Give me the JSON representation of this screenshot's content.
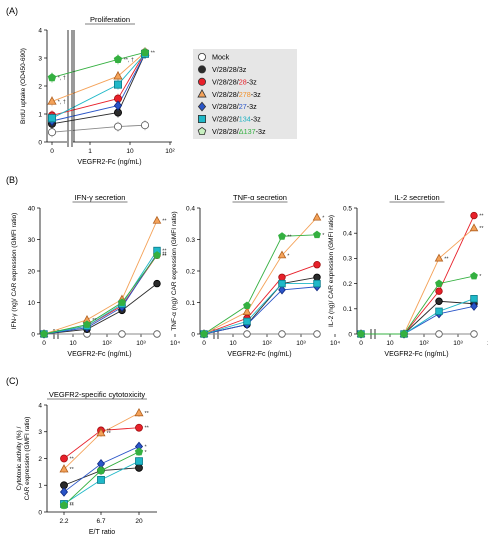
{
  "panel_letters": [
    "(A)",
    "(B)",
    "(C)"
  ],
  "legend": {
    "entries": [
      {
        "parts": [
          {
            "t": "Mock",
            "c": "#000000"
          }
        ],
        "marker": "circle",
        "fill": "#ffffff"
      },
      {
        "parts": [
          {
            "t": "V/28/28/3z",
            "c": "#000000"
          }
        ],
        "marker": "circle",
        "fill": "#2b2b2b"
      },
      {
        "parts": [
          {
            "t": "V/28/28/",
            "c": "#000000"
          },
          {
            "t": "28",
            "c": "#e8202a"
          },
          {
            "t": "-3z",
            "c": "#000000"
          }
        ],
        "marker": "circle",
        "fill": "#e8202a"
      },
      {
        "parts": [
          {
            "t": "V/28/28/",
            "c": "#000000"
          },
          {
            "t": "278",
            "c": "#f0902a"
          },
          {
            "t": "-3z",
            "c": "#000000"
          }
        ],
        "marker": "triangle",
        "fill": "#f4a259"
      },
      {
        "parts": [
          {
            "t": "V/28/28/",
            "c": "#000000"
          },
          {
            "t": "27",
            "c": "#2a55c8"
          },
          {
            "t": "-3z",
            "c": "#000000"
          }
        ],
        "marker": "diamond",
        "fill": "#2a55c8"
      },
      {
        "parts": [
          {
            "t": "V/28/28/",
            "c": "#000000"
          },
          {
            "t": "134",
            "c": "#1ab0c0"
          },
          {
            "t": "-3z",
            "c": "#000000"
          }
        ],
        "marker": "square",
        "fill": "#1fb8c8"
      },
      {
        "parts": [
          {
            "t": "V/28/28/",
            "c": "#000000"
          },
          {
            "t": "Δ137",
            "c": "#34b040"
          },
          {
            "t": "-3z",
            "c": "#000000"
          }
        ],
        "marker": "pentagon",
        "fill": "#c8f0c0"
      }
    ]
  },
  "colors": {
    "mock": "#000000",
    "z3": "#2b2b2b",
    "c28": "#e8202a",
    "c278": "#f4a259",
    "c27": "#2a55c8",
    "c134": "#1fb8c8",
    "d137": "#34b040",
    "legend_bg": "#e6e6e6"
  },
  "chart_data": [
    {
      "type": "line",
      "title": "Proliferation",
      "xlabel": "VEGFR2-Fc (ng/mL)",
      "ylabel": "BrdU uptake (OD450-690)",
      "x_scale": "log with break at 0",
      "x_ticks": [
        "0",
        "1",
        "10",
        "10²"
      ],
      "y_ticks": [
        "0",
        "1",
        "2",
        "3",
        "4"
      ],
      "ylim": [
        0,
        4
      ],
      "x": [
        0,
        2,
        20
      ],
      "series": [
        {
          "key": "mock",
          "marker": "circle",
          "values": [
            0.35,
            0.55,
            0.6
          ],
          "annot": [
            "",
            "",
            ""
          ]
        },
        {
          "key": "z3",
          "marker": "circle",
          "values": [
            0.65,
            1.05,
            3.15
          ],
          "annot": [
            "",
            "",
            ""
          ]
        },
        {
          "key": "c28",
          "marker": "circle",
          "values": [
            0.95,
            1.55,
            3.2
          ],
          "annot": [
            "",
            "",
            "**"
          ]
        },
        {
          "key": "c278",
          "marker": "triangle",
          "values": [
            1.45,
            2.35,
            3.2
          ],
          "annot": [
            "*, †",
            "",
            ""
          ]
        },
        {
          "key": "c27",
          "marker": "diamond",
          "values": [
            0.75,
            1.3,
            3.15
          ],
          "annot": [
            "",
            "",
            ""
          ]
        },
        {
          "key": "c134",
          "marker": "square",
          "values": [
            0.85,
            2.05,
            3.15
          ],
          "annot": [
            "",
            "",
            ""
          ]
        },
        {
          "key": "d137",
          "marker": "pentagon",
          "values": [
            2.3,
            2.95,
            3.2
          ],
          "annot": [
            "*, †",
            "**, †",
            ""
          ]
        }
      ]
    },
    {
      "type": "line",
      "title": "IFN-γ secretion",
      "xlabel": "VEGFR2-Fc (ng/mL)",
      "ylabel": "IFN-γ (ng)/ CAR expression (GMFI ratio)",
      "x_ticks": [
        "0",
        "10",
        "10²",
        "10³",
        "10⁴"
      ],
      "y_ticks": [
        "0",
        "10",
        "20",
        "30",
        "40"
      ],
      "ylim": [
        0,
        40
      ],
      "x": [
        0,
        20,
        200,
        2000
      ],
      "series": [
        {
          "key": "mock",
          "marker": "circle",
          "values": [
            0,
            0,
            0,
            0
          ],
          "annot": [
            "",
            "",
            "",
            ""
          ]
        },
        {
          "key": "z3",
          "marker": "circle",
          "values": [
            0,
            1.5,
            7.5,
            16
          ],
          "annot": [
            "",
            "",
            "",
            ""
          ]
        },
        {
          "key": "c28",
          "marker": "circle",
          "values": [
            0,
            2.5,
            9,
            25
          ],
          "annot": [
            "",
            "",
            "",
            "**"
          ]
        },
        {
          "key": "c278",
          "marker": "triangle",
          "values": [
            0,
            4.5,
            11,
            36
          ],
          "annot": [
            "",
            "**",
            "",
            "**"
          ]
        },
        {
          "key": "c27",
          "marker": "diamond",
          "values": [
            0,
            2,
            8.5,
            25.5
          ],
          "annot": [
            "",
            "",
            "",
            "**"
          ]
        },
        {
          "key": "c134",
          "marker": "square",
          "values": [
            0,
            2.5,
            9.5,
            26.5
          ],
          "annot": [
            "",
            "",
            "",
            "**"
          ]
        },
        {
          "key": "d137",
          "marker": "pentagon",
          "values": [
            0,
            3,
            10,
            25
          ],
          "annot": [
            "",
            "",
            "",
            "**"
          ]
        }
      ]
    },
    {
      "type": "line",
      "title": "TNF-α secretion",
      "xlabel": "VEGFR2-Fc (ng/mL)",
      "ylabel": "TNF-α (ng)/ CAR expression (GMFI ratio)",
      "x_ticks": [
        "0",
        "10",
        "10²",
        "10³",
        "10⁴"
      ],
      "y_ticks": [
        "0",
        "0.1",
        "0.2",
        "0.3",
        "0.4"
      ],
      "ylim": [
        0,
        0.4
      ],
      "x": [
        0,
        20,
        200,
        2000
      ],
      "series": [
        {
          "key": "mock",
          "marker": "circle",
          "values": [
            0,
            0,
            0,
            0
          ],
          "annot": [
            "",
            "",
            "",
            ""
          ]
        },
        {
          "key": "z3",
          "marker": "circle",
          "values": [
            0,
            0.03,
            0.16,
            0.18
          ],
          "annot": [
            "",
            "",
            "",
            ""
          ]
        },
        {
          "key": "c28",
          "marker": "circle",
          "values": [
            0,
            0.05,
            0.18,
            0.22
          ],
          "annot": [
            "",
            "",
            "",
            ""
          ]
        },
        {
          "key": "c278",
          "marker": "triangle",
          "values": [
            0,
            0.07,
            0.25,
            0.37
          ],
          "annot": [
            "",
            "",
            "*",
            "*"
          ]
        },
        {
          "key": "c27",
          "marker": "diamond",
          "values": [
            0,
            0.03,
            0.14,
            0.15
          ],
          "annot": [
            "",
            "",
            "",
            ""
          ]
        },
        {
          "key": "c134",
          "marker": "square",
          "values": [
            0,
            0.04,
            0.16,
            0.16
          ],
          "annot": [
            "",
            "",
            "",
            ""
          ]
        },
        {
          "key": "d137",
          "marker": "pentagon",
          "values": [
            0,
            0.09,
            0.31,
            0.315
          ],
          "annot": [
            "",
            "",
            "**",
            "*"
          ]
        }
      ]
    },
    {
      "type": "line",
      "title": "IL-2 secretion",
      "xlabel": "VEGFR2-Fc (ng/mL)",
      "ylabel": "IL-2 (ng)/ CAR expression (GMFI ratio)",
      "x_ticks": [
        "0",
        "10",
        "10²",
        "10³",
        "10⁴"
      ],
      "y_ticks": [
        "0",
        "0.1",
        "0.2",
        "0.3",
        "0.4",
        "0.5"
      ],
      "ylim": [
        0,
        0.5
      ],
      "x": [
        0,
        20,
        200,
        2000
      ],
      "series": [
        {
          "key": "mock",
          "marker": "circle",
          "values": [
            0,
            0,
            0,
            0
          ],
          "annot": [
            "",
            "",
            "",
            ""
          ]
        },
        {
          "key": "z3",
          "marker": "circle",
          "values": [
            0,
            0,
            0.13,
            0.12
          ],
          "annot": [
            "",
            "",
            "",
            ""
          ]
        },
        {
          "key": "c28",
          "marker": "circle",
          "values": [
            0,
            0,
            0.17,
            0.47
          ],
          "annot": [
            "",
            "",
            "",
            "**"
          ]
        },
        {
          "key": "c278",
          "marker": "triangle",
          "values": [
            0,
            0,
            0.3,
            0.42
          ],
          "annot": [
            "",
            "",
            "**",
            "**"
          ]
        },
        {
          "key": "c27",
          "marker": "diamond",
          "values": [
            0,
            0,
            0.08,
            0.11
          ],
          "annot": [
            "",
            "",
            "",
            ""
          ]
        },
        {
          "key": "c134",
          "marker": "square",
          "values": [
            0,
            0,
            0.09,
            0.14
          ],
          "annot": [
            "",
            "",
            "",
            ""
          ]
        },
        {
          "key": "d137",
          "marker": "pentagon",
          "values": [
            0,
            0,
            0.2,
            0.23
          ],
          "annot": [
            "",
            "",
            "",
            "*"
          ]
        }
      ]
    },
    {
      "type": "line",
      "title": "VEGFR2-specific cytotoxicity",
      "xlabel": "E/T ratio",
      "ylabel": "Cytotoxic activity (%) / CAR expression (GMFI ratio)",
      "x_ticks": [
        "2.2",
        "6.7",
        "20"
      ],
      "y_ticks": [
        "0",
        "1",
        "2",
        "3",
        "4"
      ],
      "ylim": [
        0,
        4
      ],
      "x": [
        2.2,
        6.7,
        20
      ],
      "series": [
        {
          "key": "z3",
          "marker": "circle",
          "values": [
            1.0,
            1.55,
            1.65
          ],
          "annot": [
            "",
            "",
            ""
          ]
        },
        {
          "key": "c28",
          "marker": "circle",
          "values": [
            2.0,
            3.05,
            3.15
          ],
          "annot": [
            "**",
            "**",
            "**"
          ]
        },
        {
          "key": "c278",
          "marker": "triangle",
          "values": [
            1.6,
            2.95,
            3.7
          ],
          "annot": [
            "**",
            "**",
            "**"
          ]
        },
        {
          "key": "c27",
          "marker": "diamond",
          "values": [
            0.75,
            1.8,
            2.45
          ],
          "annot": [
            "",
            "",
            "*"
          ]
        },
        {
          "key": "c134",
          "marker": "square",
          "values": [
            0.3,
            1.2,
            1.9
          ],
          "annot": [
            "**",
            "",
            ""
          ]
        },
        {
          "key": "d137",
          "marker": "pentagon",
          "values": [
            0.25,
            1.55,
            2.25
          ],
          "annot": [
            "**",
            "",
            "*"
          ]
        }
      ]
    }
  ]
}
